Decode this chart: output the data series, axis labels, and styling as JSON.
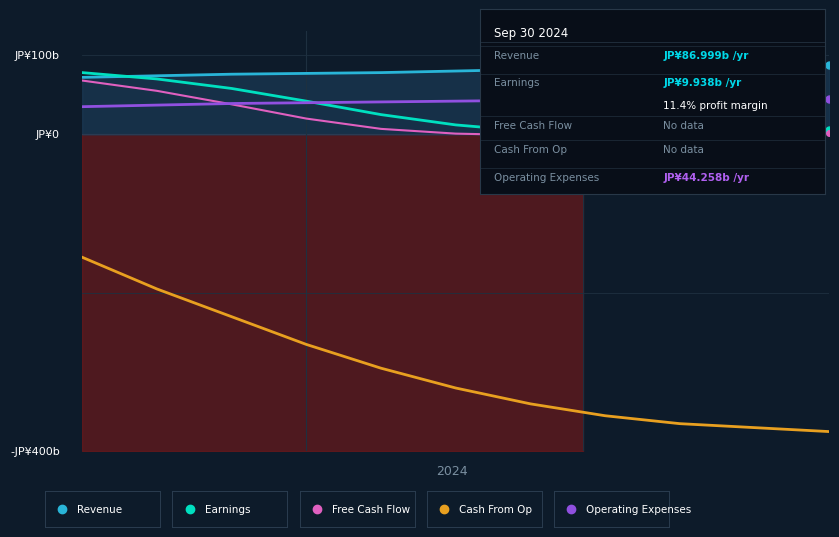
{
  "bg_color": "#0d1b2a",
  "ylabel_top": "JP¥100b",
  "ylabel_mid": "JP¥0",
  "ylabel_bot": "-JP¥400b",
  "xlabel": "2024",
  "ylim": [
    -400,
    130
  ],
  "xlim": [
    0,
    10
  ],
  "x_data": [
    0,
    1,
    2,
    3,
    4,
    5,
    6,
    7,
    8,
    9,
    10
  ],
  "revenue": [
    72,
    74,
    76,
    77,
    78,
    80,
    82,
    84,
    85,
    86,
    87
  ],
  "earnings": [
    78,
    70,
    58,
    42,
    25,
    12,
    4,
    2,
    1,
    2,
    5
  ],
  "free_cash_flow": [
    68,
    55,
    38,
    20,
    7,
    1,
    -1,
    0,
    0,
    1,
    2
  ],
  "cash_from_op": [
    -155,
    -195,
    -230,
    -265,
    -295,
    -320,
    -340,
    -355,
    -365,
    -370,
    -375
  ],
  "operating_expenses": [
    35,
    37,
    39,
    40,
    41,
    42,
    43,
    43.5,
    44,
    44.1,
    44.258
  ],
  "revenue_color": "#29b5d8",
  "earnings_color": "#00e0c0",
  "free_cash_flow_color": "#e060c0",
  "cash_from_op_color": "#e8a020",
  "operating_expenses_color": "#9050e0",
  "revenue_fill_color": "#1a3a55",
  "negative_fill_color": "#7a1818",
  "grid_color": "#1e3040",
  "text_color": "#7a8fa0",
  "tooltip_highlight_rev": "#00d8e8",
  "tooltip_highlight_earn": "#00d8e8",
  "tooltip_highlight_opex": "#b060f0",
  "tooltip_bg": "#080e18",
  "tooltip_border": "#283848",
  "vertical_line1_x": 3.0,
  "vertical_line2_x": 6.7,
  "red_region_end_x": 6.7,
  "legend_items": [
    "Revenue",
    "Earnings",
    "Free Cash Flow",
    "Cash From Op",
    "Operating Expenses"
  ],
  "legend_colors": [
    "#29b5d8",
    "#00e0c0",
    "#e060c0",
    "#e8a020",
    "#9050e0"
  ]
}
